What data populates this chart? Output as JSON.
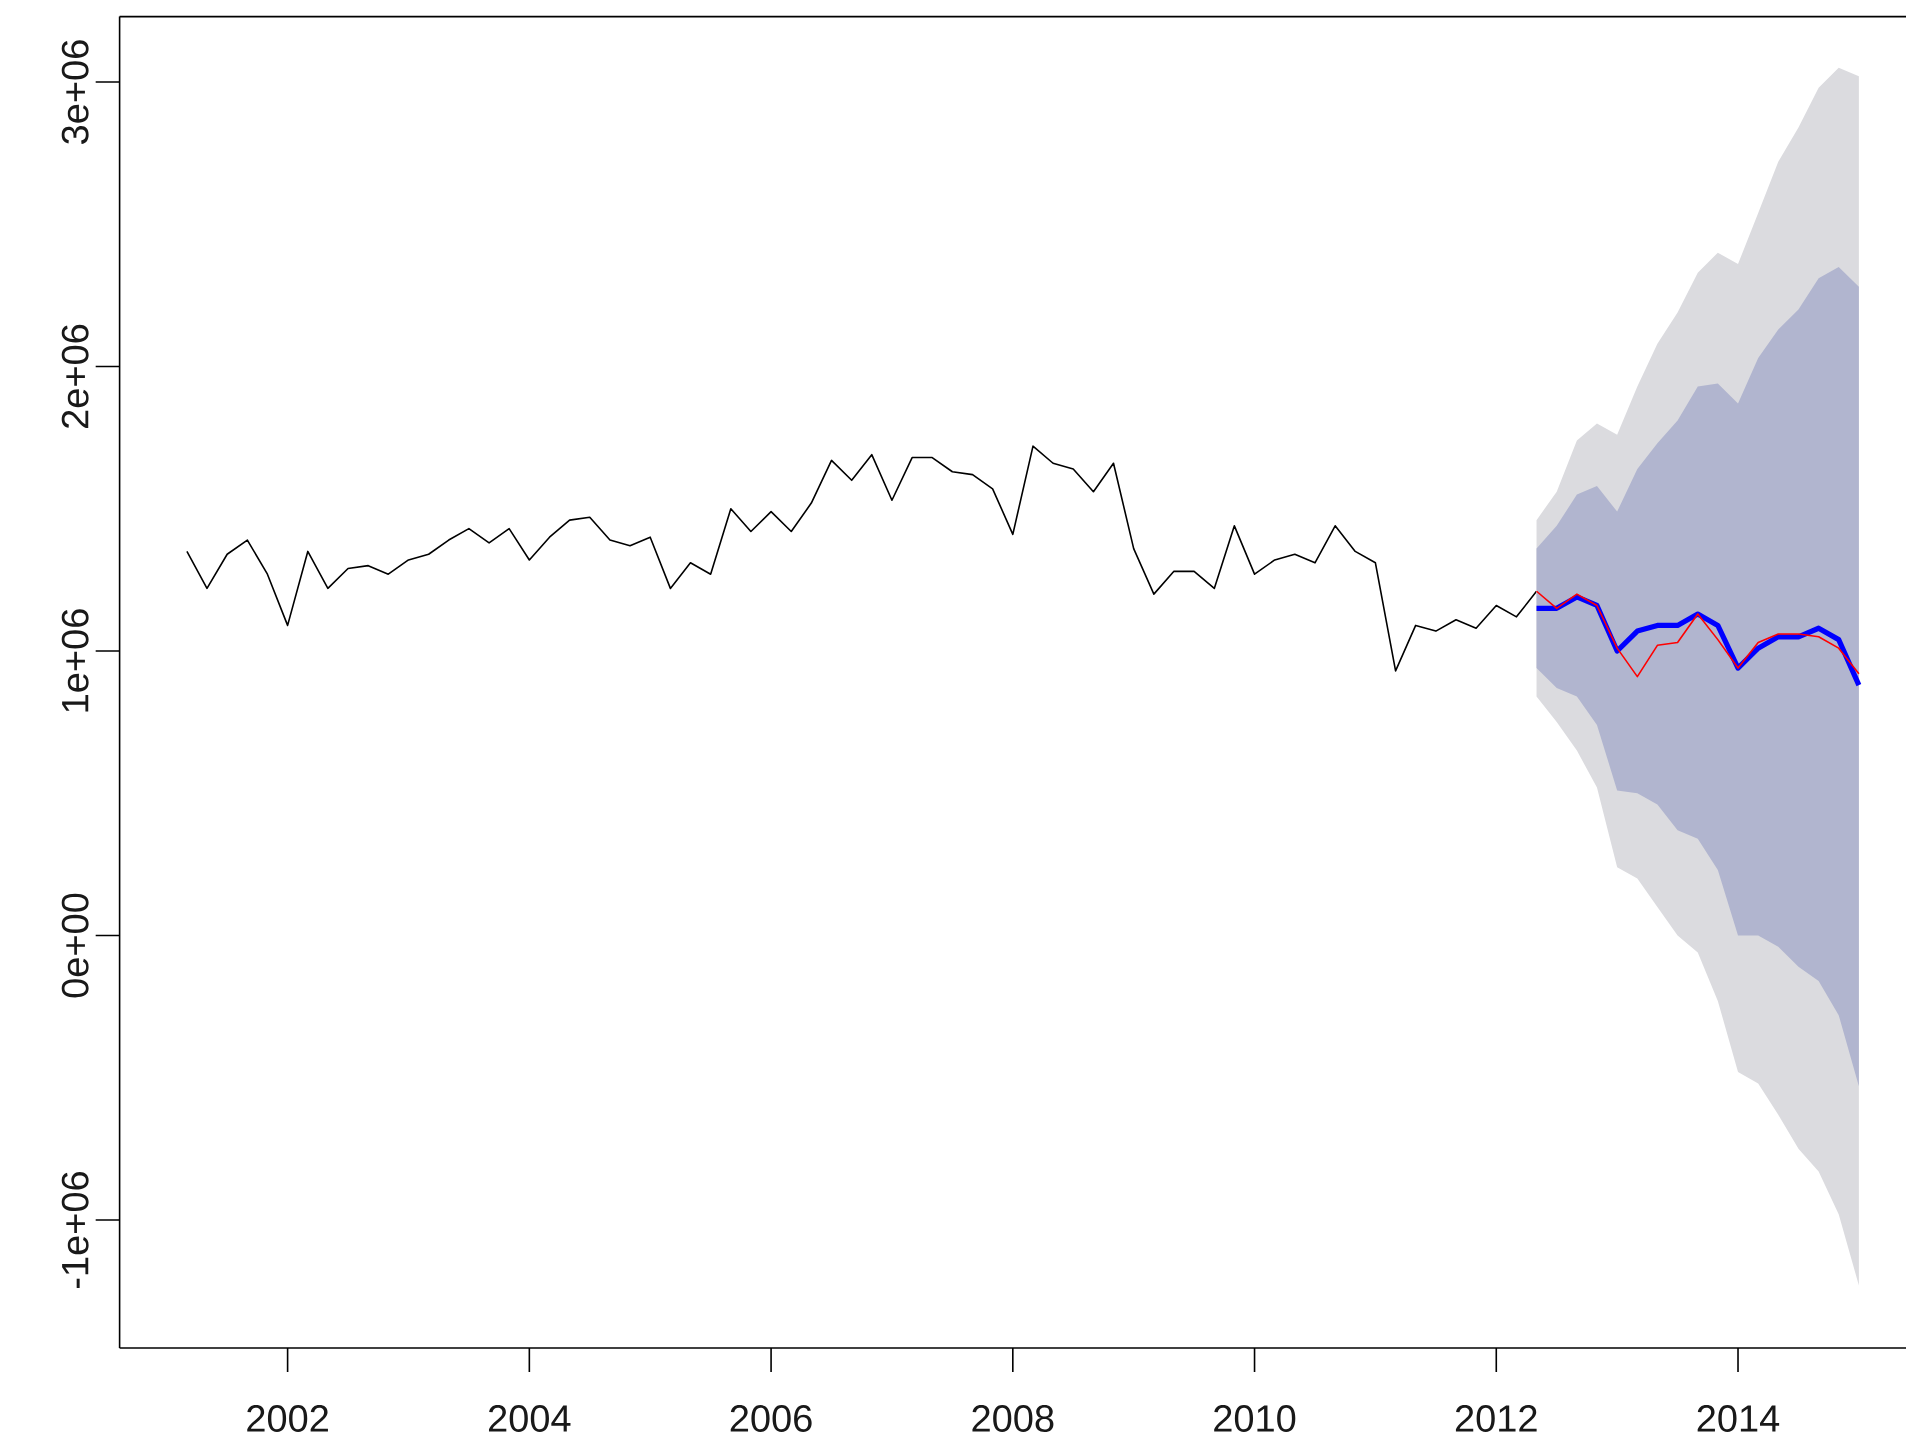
{
  "chart_data": {
    "type": "line",
    "xlim": [
      2000.61,
      2015.39
    ],
    "ylim": [
      -1450000,
      3230000
    ],
    "xticks": [
      2002,
      2004,
      2006,
      2008,
      2010,
      2012,
      2014
    ],
    "yticks": [
      {
        "value": -1000000,
        "label": "-1e+06"
      },
      {
        "value": 0,
        "label": "0e+00"
      },
      {
        "value": 1000000,
        "label": "1e+06"
      },
      {
        "value": 2000000,
        "label": "2e+06"
      },
      {
        "value": 3000000,
        "label": "3e+06"
      }
    ],
    "series": [
      {
        "type": "line",
        "color": "#000000",
        "x": [
          2001.167,
          2001.333,
          2001.5,
          2001.667,
          2001.833,
          2002,
          2002.167,
          2002.333,
          2002.5,
          2002.667,
          2002.833,
          2003,
          2003.167,
          2003.333,
          2003.5,
          2003.667,
          2003.833,
          2004,
          2004.167,
          2004.333,
          2004.5,
          2004.667,
          2004.833,
          2005,
          2005.167,
          2005.333,
          2005.5,
          2005.667,
          2005.833,
          2006,
          2006.167,
          2006.333,
          2006.5,
          2006.667,
          2006.833,
          2007,
          2007.167,
          2007.333,
          2007.5,
          2007.667,
          2007.833,
          2008,
          2008.167,
          2008.333,
          2008.5,
          2008.667,
          2008.833,
          2009,
          2009.167,
          2009.333,
          2009.5,
          2009.667,
          2009.833,
          2010,
          2010.167,
          2010.333,
          2010.5,
          2010.667,
          2010.833,
          2011,
          2011.167,
          2011.333,
          2011.5,
          2011.667,
          2011.833,
          2012,
          2012.167,
          2012.333
        ],
        "values": [
          1350000,
          1220000,
          1340000,
          1390000,
          1270000,
          1090000,
          1350000,
          1220000,
          1290000,
          1300000,
          1270000,
          1320000,
          1340000,
          1390000,
          1430000,
          1380000,
          1430000,
          1320000,
          1400000,
          1460000,
          1470000,
          1390000,
          1370000,
          1400000,
          1220000,
          1310000,
          1270000,
          1500000,
          1420000,
          1490000,
          1420000,
          1520000,
          1670000,
          1600000,
          1690000,
          1530000,
          1680000,
          1680000,
          1630000,
          1620000,
          1570000,
          1410000,
          1720000,
          1660000,
          1640000,
          1560000,
          1660000,
          1360000,
          1200000,
          1280000,
          1280000,
          1220000,
          1440000,
          1270000,
          1320000,
          1340000,
          1310000,
          1440000,
          1350000,
          1310000,
          930000,
          1090000,
          1070000,
          1110000,
          1080000,
          1160000,
          1120000,
          1210000
        ]
      },
      {
        "type": "area",
        "color": "#dbdbdf",
        "x": [
          2012.333,
          2012.5,
          2012.667,
          2012.833,
          2013,
          2013.167,
          2013.333,
          2013.5,
          2013.667,
          2013.833,
          2014,
          2014.167,
          2014.333,
          2014.5,
          2014.667,
          2014.833,
          2015
        ],
        "values": [
          null,
          null,
          null,
          null,
          null,
          null,
          null,
          null,
          null,
          null,
          null,
          null,
          null,
          null,
          null,
          null,
          null
        ],
        "lower": [
          840000,
          750000,
          650000,
          520000,
          240000,
          200000,
          100000,
          0,
          -60000,
          -230000,
          -480000,
          -520000,
          -630000,
          -750000,
          -830000,
          -980000,
          -1230000
        ],
        "upper": [
          1460000,
          1560000,
          1740000,
          1800000,
          1760000,
          1930000,
          2080000,
          2190000,
          2330000,
          2400000,
          2360000,
          2540000,
          2720000,
          2840000,
          2980000,
          3050000,
          3020000
        ]
      },
      {
        "type": "area",
        "color": "#b1b5cf",
        "x": [
          2012.333,
          2012.5,
          2012.667,
          2012.833,
          2013,
          2013.167,
          2013.333,
          2013.5,
          2013.667,
          2013.833,
          2014,
          2014.167,
          2014.333,
          2014.5,
          2014.667,
          2014.833,
          2015
        ],
        "values": [
          null,
          null,
          null,
          null,
          null,
          null,
          null,
          null,
          null,
          null,
          null,
          null,
          null,
          null,
          null,
          null,
          null
        ],
        "lower": [
          940000,
          870000,
          840000,
          740000,
          510000,
          500000,
          460000,
          370000,
          340000,
          230000,
          0,
          0,
          -40000,
          -110000,
          -160000,
          -280000,
          -530000
        ],
        "upper": [
          1360000,
          1440000,
          1550000,
          1580000,
          1490000,
          1640000,
          1730000,
          1810000,
          1930000,
          1940000,
          1870000,
          2030000,
          2130000,
          2200000,
          2310000,
          2350000,
          2280000
        ]
      },
      {
        "type": "line",
        "color": "#0000ff",
        "x": [
          2012.333,
          2012.5,
          2012.667,
          2012.833,
          2013,
          2013.167,
          2013.333,
          2013.5,
          2013.667,
          2013.833,
          2014,
          2014.167,
          2014.333,
          2014.5,
          2014.667,
          2014.833,
          2015
        ],
        "values": [
          1150000,
          1150000,
          1190000,
          1160000,
          1000000,
          1070000,
          1090000,
          1090000,
          1130000,
          1090000,
          940000,
          1010000,
          1050000,
          1050000,
          1080000,
          1040000,
          880000
        ]
      },
      {
        "type": "line",
        "color": "#ff0000",
        "x": [
          2012.333,
          2012.5,
          2012.667,
          2012.833,
          2013,
          2013.167,
          2013.333,
          2013.5,
          2013.667,
          2013.833,
          2014,
          2014.167,
          2014.333,
          2014.5,
          2014.667,
          2014.833,
          2015
        ],
        "values": [
          1210000,
          1150000,
          1200000,
          1160000,
          1010000,
          910000,
          1020000,
          1030000,
          1130000,
          1040000,
          940000,
          1030000,
          1060000,
          1060000,
          1050000,
          1010000,
          920000
        ]
      }
    ]
  }
}
